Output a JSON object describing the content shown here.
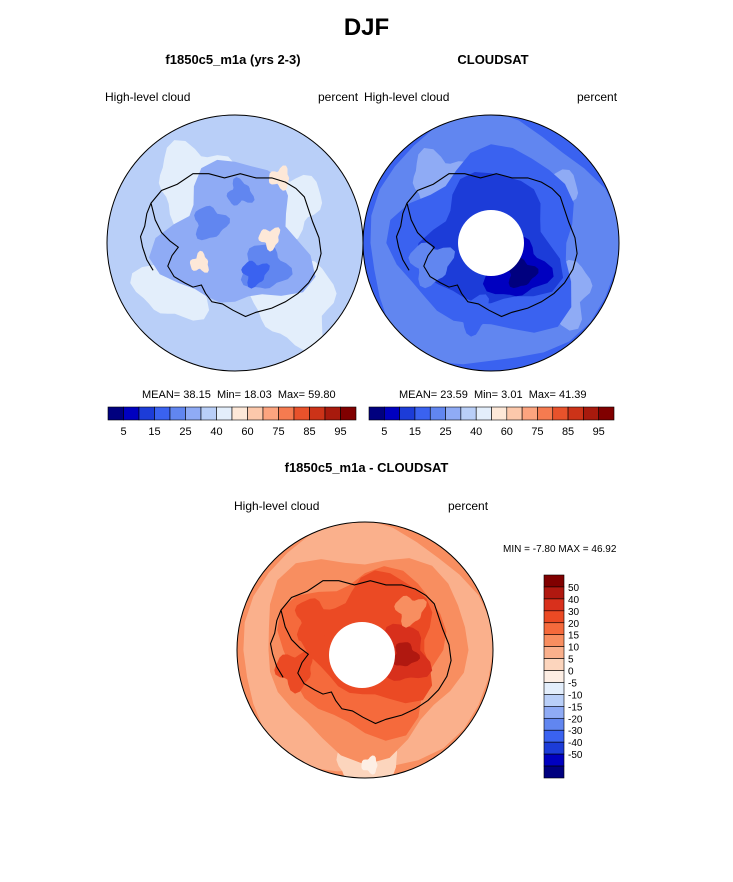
{
  "page": {
    "title": "DJF"
  },
  "panels": [
    {
      "id": "model",
      "title": "f1850c5_m1a (yrs 2-3)",
      "left_label": "High-level cloud",
      "right_label": "percent",
      "stats": {
        "mean": "38.15",
        "min": "18.03",
        "max": "59.80"
      },
      "base_level": 40
    },
    {
      "id": "obs",
      "title": "CLOUDSAT",
      "left_label": "High-level cloud",
      "right_label": "percent",
      "stats": {
        "mean": "23.59",
        "min": "3.01",
        "max": "41.39"
      },
      "base_level": 22
    }
  ],
  "stat_labels": {
    "mean": "MEAN=",
    "min": "Min=",
    "max": "Max="
  },
  "abs_colorbar": {
    "colors": [
      "#00007f",
      "#0000c0",
      "#1c3cd8",
      "#3a62f0",
      "#6186f0",
      "#8fabf5",
      "#b9cff8",
      "#e3eefb",
      "#fde8d8",
      "#fcc8ab",
      "#fca47f",
      "#f57b50",
      "#e8522b",
      "#cc3318",
      "#a81a0d",
      "#800000"
    ],
    "labels": [
      "5",
      "15",
      "25",
      "40",
      "60",
      "75",
      "85",
      "95"
    ]
  },
  "diff": {
    "title": "f1850c5_m1a - CLOUDSAT",
    "left_label": "High-level cloud",
    "right_label": "percent",
    "min_label": "MIN =",
    "min_value": "-7.80",
    "max_label": "MAX =",
    "max_value": "46.92",
    "base_level": 12
  },
  "diff_colorbar": {
    "colors": [
      "#800000",
      "#b01810",
      "#d8301c",
      "#eb4a24",
      "#f56a3c",
      "#f88e60",
      "#fab08c",
      "#fcd5bd",
      "#fdeee4",
      "#e3eefb",
      "#b9cff8",
      "#8fabf5",
      "#6186f0",
      "#3a62f0",
      "#1c3cd8",
      "#0000c0",
      "#00007f"
    ],
    "labels": [
      "50",
      "40",
      "30",
      "20",
      "15",
      "10",
      "5",
      "0",
      "-5",
      "-10",
      "-15",
      "-20",
      "-30",
      "-40",
      "-50"
    ]
  }
}
